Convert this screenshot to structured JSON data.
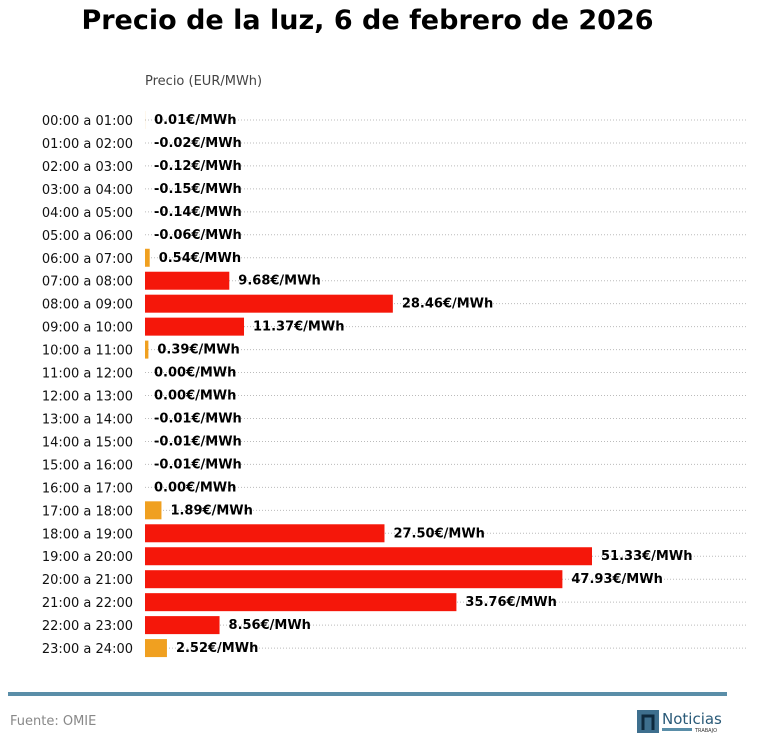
{
  "chart_data": {
    "type": "bar",
    "orientation": "horizontal",
    "title": "Precio de la luz, 6 de febrero de 2026",
    "xlabel": "Precio (EUR/MWh)",
    "categories": [
      "00:00 a 01:00",
      "01:00 a 02:00",
      "02:00 a 03:00",
      "03:00 a 04:00",
      "04:00 a 05:00",
      "05:00 a 06:00",
      "06:00 a 07:00",
      "07:00 a 08:00",
      "08:00 a 09:00",
      "09:00 a 10:00",
      "10:00 a 11:00",
      "11:00 a 12:00",
      "12:00 a 13:00",
      "13:00 a 14:00",
      "14:00 a 15:00",
      "15:00 a 16:00",
      "16:00 a 17:00",
      "17:00 a 18:00",
      "18:00 a 19:00",
      "19:00 a 20:00",
      "20:00 a 21:00",
      "21:00 a 22:00",
      "22:00 a 23:00",
      "23:00 a 24:00"
    ],
    "values": [
      0.01,
      -0.02,
      -0.12,
      -0.15,
      -0.14,
      -0.06,
      0.54,
      9.68,
      28.46,
      11.37,
      0.39,
      0.0,
      0.0,
      -0.01,
      -0.01,
      -0.01,
      0.0,
      1.89,
      27.5,
      51.33,
      47.93,
      35.76,
      8.56,
      2.52
    ],
    "value_labels": [
      "0.01€/MWh",
      "-0.02€/MWh",
      "-0.12€/MWh",
      "-0.15€/MWh",
      "-0.14€/MWh",
      "-0.06€/MWh",
      "0.54€/MWh",
      "9.68€/MWh",
      "28.46€/MWh",
      "11.37€/MWh",
      "0.39€/MWh",
      "0.00€/MWh",
      "0.00€/MWh",
      "-0.01€/MWh",
      "-0.01€/MWh",
      "-0.01€/MWh",
      "0.00€/MWh",
      "1.89€/MWh",
      "27.50€/MWh",
      "51.33€/MWh",
      "47.93€/MWh",
      "35.76€/MWh",
      "8.56€/MWh",
      "2.52€/MWh"
    ],
    "colors": {
      "high": "#f5170a",
      "low": "#f0a020"
    },
    "grid": true
  },
  "footer": {
    "source": "Fuente: OMIE",
    "logo_text": "Noticias",
    "logo_sub": "TRABAJO"
  }
}
